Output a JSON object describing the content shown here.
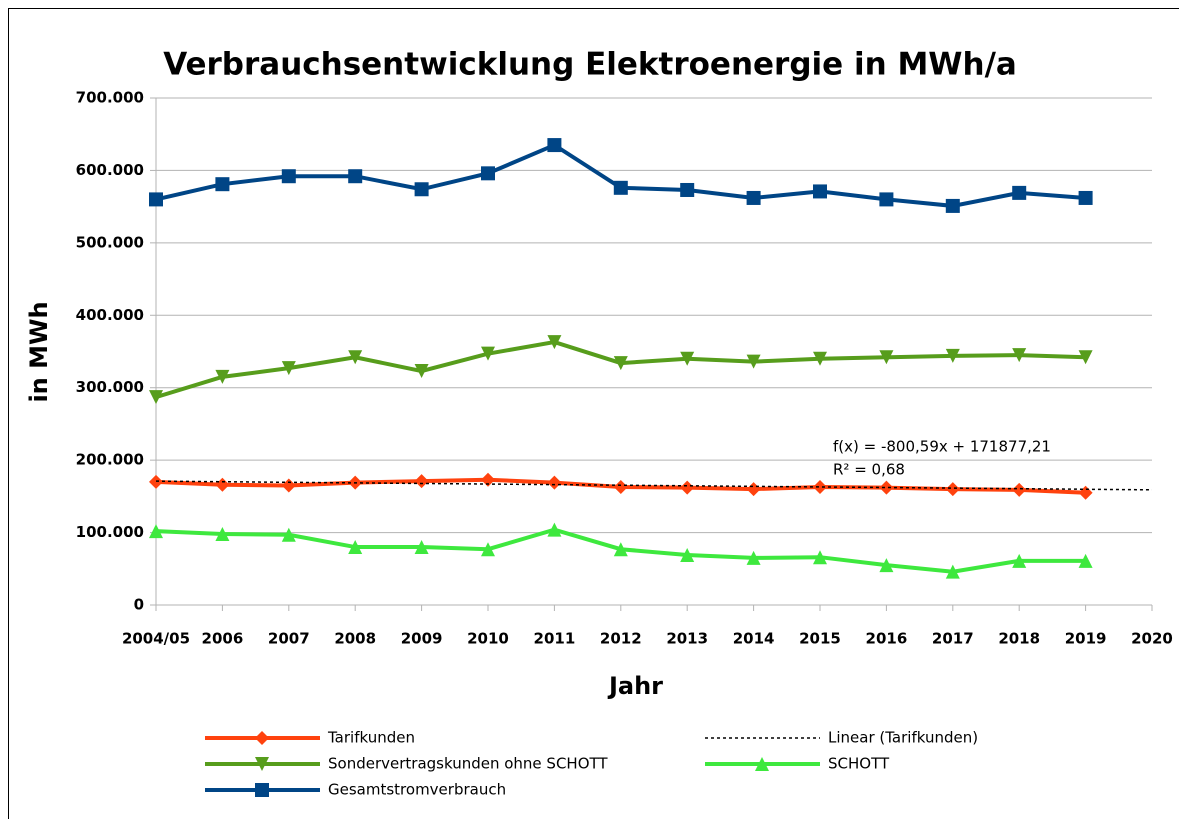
{
  "chart_data": {
    "type": "line",
    "title": "Verbrauchsentwicklung Elektroenergie in MWh/a",
    "x_label": "Jahr",
    "y_label": "in MWh",
    "categories": [
      "2004/05",
      "2006",
      "2007",
      "2008",
      "2009",
      "2010",
      "2011",
      "2012",
      "2013",
      "2014",
      "2015",
      "2016",
      "2017",
      "2018",
      "2019",
      "2020"
    ],
    "series": [
      {
        "name": "Tarifkunden",
        "color": "#ff420e",
        "marker": "diamond",
        "values": [
          170000,
          166000,
          165000,
          169000,
          171000,
          173000,
          169000,
          163000,
          162000,
          160000,
          163000,
          162000,
          160000,
          159000,
          155000,
          null
        ]
      },
      {
        "name": "Linear (Tarifkunden)",
        "color": "#000000",
        "dash": "dotted",
        "values": [
          171000,
          170200,
          169400,
          168600,
          167800,
          167000,
          166200,
          165400,
          164600,
          163800,
          163000,
          162200,
          161400,
          160600,
          159800,
          159000
        ]
      },
      {
        "name": "Sondervertragskunden ohne SCHOTT",
        "color": "#579d1c",
        "marker": "triangle-down",
        "values": [
          287000,
          315000,
          327000,
          342000,
          323000,
          347000,
          363000,
          334000,
          340000,
          336000,
          340000,
          342000,
          344000,
          345000,
          342000,
          null
        ]
      },
      {
        "name": "SCHOTT",
        "color": "#3ee83e",
        "marker": "triangle-up",
        "values": [
          102000,
          98000,
          97000,
          80000,
          80000,
          77000,
          104000,
          77000,
          69000,
          65000,
          66000,
          55000,
          46000,
          61000,
          61000,
          null
        ]
      },
      {
        "name": "Gesamtstromverbrauch",
        "color": "#004586",
        "marker": "square",
        "values": [
          560000,
          581000,
          592000,
          592000,
          574000,
          596000,
          635000,
          576000,
          573000,
          562000,
          571000,
          560000,
          551000,
          569000,
          562000,
          null
        ]
      }
    ],
    "annotations": [
      "f(x) = -800,59x + 171877,21",
      "R² = 0,68"
    ],
    "ylim": [
      0,
      700000
    ],
    "yticks": [
      0,
      {
        "value": 100000,
        "label": "100.000"
      },
      {
        "value": 200000,
        "label": "200.000"
      },
      {
        "value": 300000,
        "label": "300.000"
      },
      {
        "value": 400000,
        "label": "400.000"
      },
      {
        "value": 500000,
        "label": "500.000"
      },
      {
        "value": 600000,
        "label": "600.000"
      },
      {
        "value": 700000,
        "label": "700.000"
      }
    ],
    "grid": true,
    "legend": "bottom"
  }
}
